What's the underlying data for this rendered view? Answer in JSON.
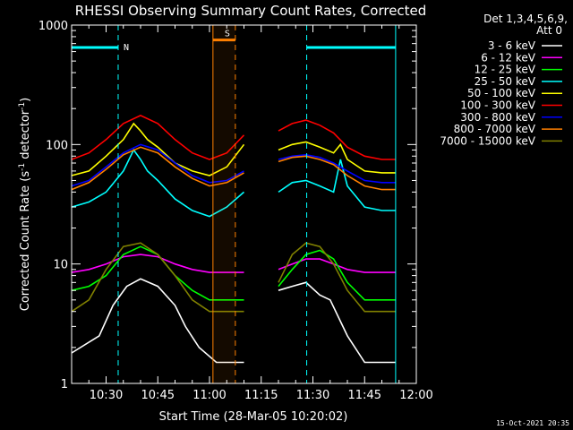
{
  "chart_data": {
    "type": "line",
    "title": "RHESSI Observing Summary Count Rates, Corrected",
    "xlabel": "Start Time (28-Mar-05 10:20:02)",
    "ylabel_parts": [
      "Corrected Count Rate (s",
      "-1",
      " detector",
      "-1",
      ")"
    ],
    "yscale": "log",
    "ylim": [
      1,
      1000
    ],
    "xlim_minutes": [
      0,
      100
    ],
    "x_ticks": [
      {
        "m": 10,
        "label": "10:30"
      },
      {
        "m": 25,
        "label": "10:45"
      },
      {
        "m": 40,
        "label": "11:00"
      },
      {
        "m": 55,
        "label": "11:15"
      },
      {
        "m": 70,
        "label": "11:30"
      },
      {
        "m": 85,
        "label": "11:45"
      },
      {
        "m": 100,
        "label": "12:00"
      }
    ],
    "y_ticks": [
      {
        "v": 1,
        "label": "1"
      },
      {
        "v": 10,
        "label": "10"
      },
      {
        "v": 100,
        "label": "100"
      },
      {
        "v": 1000,
        "label": "1000"
      }
    ],
    "legend_header": [
      "Det 1,3,4,5,6,9,",
      "Att 0"
    ],
    "legend_placement": "top-right outside",
    "series": [
      {
        "name": "3 - 6 keV",
        "color": "#ffffff",
        "x": [
          0,
          8,
          12,
          16,
          20,
          25,
          30,
          33,
          37,
          42,
          50,
          56,
          60,
          64,
          68,
          72,
          75,
          80,
          85,
          90,
          94
        ],
        "y": [
          1.8,
          2.5,
          4.5,
          6.5,
          7.5,
          6.5,
          4.5,
          3,
          2,
          1.5,
          1.5,
          null,
          6,
          6.5,
          7,
          5.5,
          5,
          2.5,
          1.5,
          1.5,
          1.5
        ]
      },
      {
        "name": "6 - 12 keV",
        "color": "#ff00ff",
        "x": [
          0,
          5,
          10,
          15,
          20,
          25,
          30,
          35,
          40,
          50,
          56,
          60,
          64,
          68,
          72,
          76,
          80,
          85,
          90,
          94
        ],
        "y": [
          8.5,
          9,
          10,
          11.5,
          12,
          11.5,
          10,
          9,
          8.5,
          8.5,
          null,
          9,
          10,
          11,
          11,
          10,
          9,
          8.5,
          8.5,
          8.5
        ]
      },
      {
        "name": "12 - 25 keV",
        "color": "#00ff00",
        "x": [
          0,
          5,
          10,
          15,
          20,
          25,
          30,
          35,
          40,
          50,
          56,
          60,
          64,
          68,
          72,
          76,
          80,
          85,
          90,
          94
        ],
        "y": [
          6,
          6.5,
          8,
          12,
          14,
          12,
          8,
          6,
          5,
          5,
          null,
          6.5,
          9,
          12,
          13,
          11,
          7,
          5,
          5,
          5
        ]
      },
      {
        "name": "25 - 50 keV",
        "color": "#00ffff",
        "x": [
          0,
          5,
          10,
          15,
          18,
          20,
          22,
          25,
          30,
          35,
          40,
          45,
          50,
          56,
          60,
          64,
          68,
          72,
          76,
          78,
          80,
          85,
          90,
          94
        ],
        "y": [
          30,
          33,
          40,
          60,
          90,
          75,
          60,
          50,
          35,
          28,
          25,
          30,
          40,
          null,
          40,
          48,
          50,
          45,
          40,
          75,
          45,
          30,
          28,
          28
        ]
      },
      {
        "name": "50 - 100 keV",
        "color": "#ffff00",
        "x": [
          0,
          5,
          10,
          15,
          18,
          20,
          22,
          25,
          30,
          35,
          40,
          45,
          50,
          56,
          60,
          64,
          68,
          72,
          76,
          78,
          80,
          85,
          90,
          94
        ],
        "y": [
          55,
          60,
          80,
          110,
          150,
          130,
          110,
          95,
          70,
          60,
          55,
          65,
          100,
          null,
          90,
          100,
          105,
          95,
          85,
          100,
          75,
          60,
          58,
          58
        ]
      },
      {
        "name": "100 - 300 keV",
        "color": "#ff0000",
        "x": [
          0,
          5,
          10,
          15,
          20,
          25,
          30,
          35,
          40,
          45,
          50,
          56,
          60,
          64,
          68,
          72,
          76,
          80,
          85,
          90,
          94
        ],
        "y": [
          75,
          85,
          110,
          150,
          175,
          150,
          110,
          85,
          75,
          85,
          120,
          null,
          130,
          150,
          160,
          145,
          125,
          95,
          80,
          75,
          75
        ]
      },
      {
        "name": "300 - 800 keV",
        "color": "#0000ff",
        "x": [
          0,
          5,
          10,
          15,
          20,
          25,
          30,
          35,
          40,
          45,
          50,
          56,
          60,
          64,
          68,
          72,
          76,
          80,
          85,
          90,
          94
        ],
        "y": [
          45,
          50,
          65,
          85,
          100,
          90,
          70,
          55,
          48,
          50,
          60,
          null,
          75,
          80,
          82,
          78,
          70,
          60,
          50,
          48,
          48
        ]
      },
      {
        "name": "800 - 7000 keV",
        "color": "#ff8000",
        "x": [
          0,
          5,
          10,
          15,
          20,
          25,
          30,
          35,
          40,
          45,
          50,
          56,
          60,
          64,
          68,
          72,
          76,
          80,
          85,
          90,
          94
        ],
        "y": [
          42,
          48,
          62,
          82,
          95,
          85,
          65,
          52,
          45,
          48,
          58,
          null,
          72,
          78,
          80,
          75,
          68,
          55,
          45,
          42,
          42
        ]
      },
      {
        "name": "7000 - 15000 keV",
        "color": "#808000",
        "x": [
          0,
          5,
          10,
          15,
          20,
          25,
          30,
          35,
          40,
          50,
          56,
          60,
          64,
          68,
          72,
          76,
          80,
          85,
          90,
          94
        ],
        "y": [
          4,
          5,
          9,
          14,
          15,
          12,
          8,
          5,
          4,
          4,
          null,
          7,
          12,
          15,
          14,
          10,
          6,
          4,
          4,
          4
        ]
      }
    ],
    "annotations": [
      {
        "label": "N",
        "color": "#00ffff",
        "bar": [
          0,
          13.5
        ],
        "y": 650,
        "dashed_at": [
          13.5,
          68.2
        ],
        "solid_at": [
          0,
          94
        ],
        "bar2": [
          68.2,
          94
        ]
      },
      {
        "label": "S",
        "color": "#ff8000",
        "bar": [
          41,
          47.5
        ],
        "y": 750,
        "dashed_at": [
          47.5
        ],
        "solid_at": [
          41
        ]
      }
    ]
  },
  "footer": {
    "timestamp": "15-Oct-2021 20:35"
  }
}
